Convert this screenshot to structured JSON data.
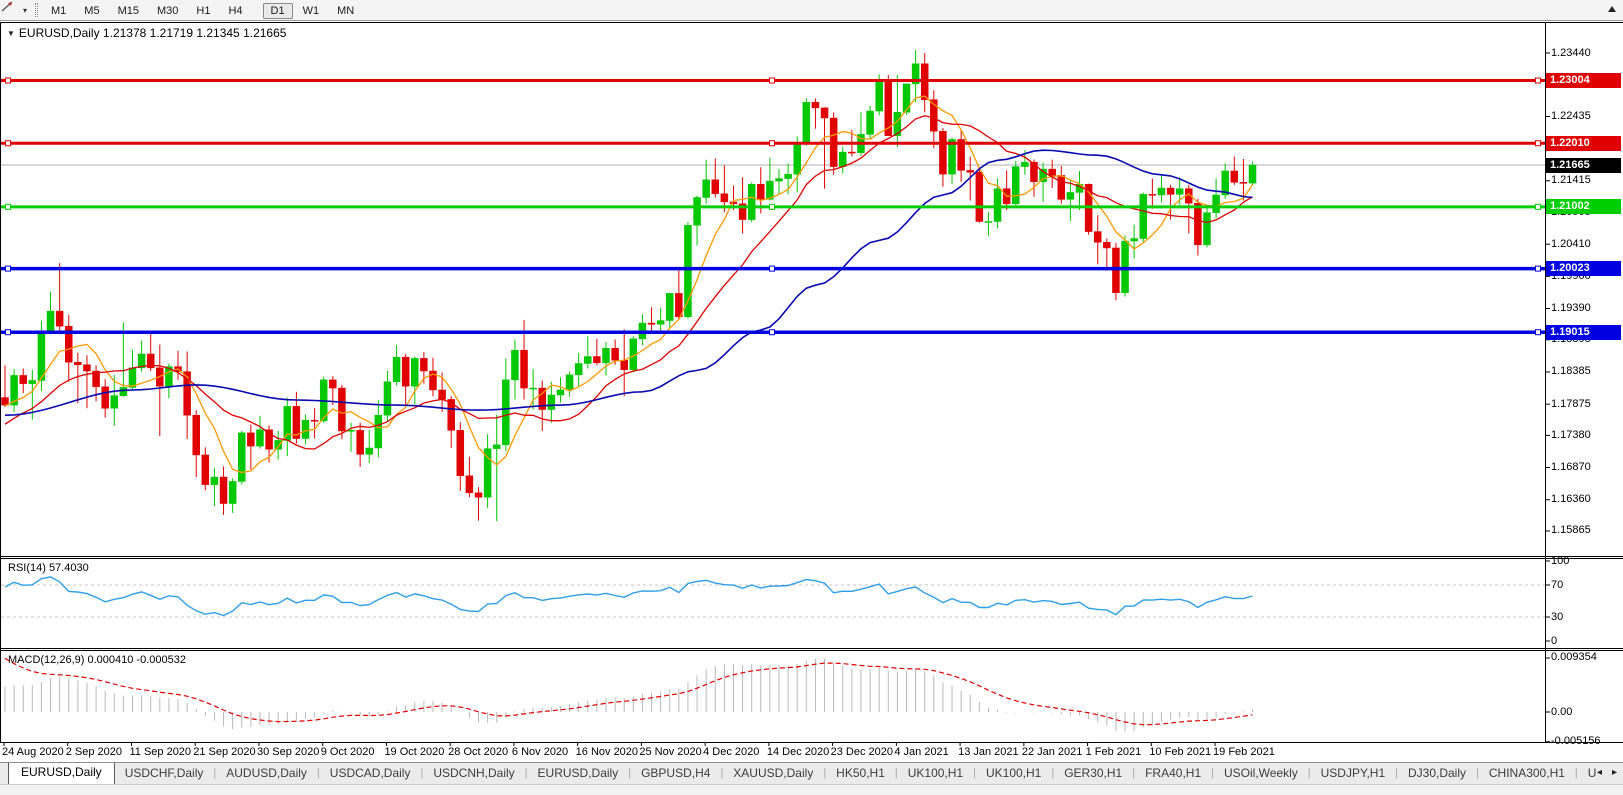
{
  "toolbar": {
    "cursor_tool_icon": "trendline-cursor-icon",
    "dropdown_icon": "chevron-down-icon",
    "timeframes": [
      "M1",
      "M5",
      "M15",
      "M30",
      "H1",
      "H4",
      "D1",
      "W1",
      "MN"
    ],
    "active_timeframe": "D1"
  },
  "chart_window": {
    "collapse_icon": "▼",
    "title": "EURUSD,Daily  1.21378 1.21719 1.21345 1.21665"
  },
  "chart_data": {
    "type": "candlestick",
    "symbol": "EURUSD",
    "timeframe": "Daily",
    "last_bar": {
      "open": 1.21378,
      "high": 1.21719,
      "low": 1.21345,
      "close": 1.21665
    },
    "price_axis_ticks": [
      "1.23440",
      "1.22930",
      "1.22435",
      "1.21925",
      "1.21415",
      "1.20905",
      "1.20410",
      "1.19900",
      "1.19390",
      "1.18895",
      "1.18385",
      "1.17875",
      "1.17380",
      "1.16870",
      "1.16360",
      "1.15865"
    ],
    "date_labels": [
      "24 Aug 2020",
      "2 Sep 2020",
      "11 Sep 2020",
      "21 Sep 2020",
      "30 Sep 2020",
      "9 Oct 2020",
      "19 Oct 2020",
      "28 Oct 2020",
      "6 Nov 2020",
      "16 Nov 2020",
      "25 Nov 2020",
      "4 Dec 2020",
      "14 Dec 2020",
      "23 Dec 2020",
      "4 Jan 2021",
      "13 Jan 2021",
      "22 Jan 2021",
      "1 Feb 2021",
      "10 Feb 2021",
      "19 Feb 2021"
    ],
    "colors": {
      "candle_up": "#00c800",
      "candle_down": "#e00000",
      "ma_fast": "#ff9900",
      "ma_medium": "#dd0000",
      "ma_slow": "#0909b0",
      "current_price_line": "#b0b0b0",
      "current_price_tag_bg": "#000000",
      "frame": "#000000"
    },
    "hlines": [
      {
        "price": 1.23004,
        "label": "1.23004",
        "color": "#e00000",
        "width": 3
      },
      {
        "price": 1.2201,
        "label": "1.22010",
        "color": "#e00000",
        "width": 3
      },
      {
        "price": 1.21002,
        "label": "1.21002",
        "color": "#00ce00",
        "width": 3
      },
      {
        "price": 1.20023,
        "label": "1.20023",
        "color": "#0000e0",
        "width": 3.5
      },
      {
        "price": 1.19015,
        "label": "1.19015",
        "color": "#0000e0",
        "width": 3.5
      }
    ],
    "current_price": {
      "value": 1.21665,
      "label": "1.21665"
    },
    "moving_averages": {
      "fast_period": 6,
      "medium_period": 14,
      "slow_anchors": [
        [
          0,
          1.177
        ],
        [
          14,
          1.181
        ],
        [
          21,
          1.1818
        ],
        [
          32,
          1.1794
        ],
        [
          43,
          1.1786
        ],
        [
          52,
          1.1778
        ],
        [
          61,
          1.1786
        ],
        [
          70,
          1.1807
        ],
        [
          76,
          1.1841
        ],
        [
          83,
          1.1905
        ],
        [
          89,
          1.1976
        ],
        [
          96,
          1.2047
        ],
        [
          103,
          1.2119
        ],
        [
          109,
          1.2174
        ],
        [
          114,
          1.219
        ],
        [
          120,
          1.2182
        ],
        [
          127,
          1.2151
        ],
        [
          133,
          1.2125
        ],
        [
          137,
          1.2115
        ]
      ]
    },
    "rsi": {
      "label": "RSI(14) 57.4030",
      "period": 14,
      "current": 57.403,
      "axis_ticks": [
        "100",
        "70",
        "30",
        "0"
      ],
      "level_lines": [
        70,
        30
      ],
      "color": "#2e9fe6"
    },
    "macd": {
      "label": "MACD(12,26,9) 0.000410 -0.000532",
      "current_macd": 0.00041,
      "current_signal": -0.000532,
      "axis_ticks": [
        "0.009354",
        "0.00",
        "-0.005156"
      ],
      "hist_color": "#b8b8b8",
      "signal_color": "#e00000"
    },
    "candles": [
      [
        1.1798,
        1.1849,
        1.1783,
        1.1786
      ],
      [
        1.1786,
        1.1843,
        1.1775,
        1.1833
      ],
      [
        1.1833,
        1.1844,
        1.1805,
        1.182
      ],
      [
        1.182,
        1.1842,
        1.1763,
        1.1825
      ],
      [
        1.1825,
        1.192,
        1.1808,
        1.1903
      ],
      [
        1.1903,
        1.1966,
        1.1898,
        1.1935
      ],
      [
        1.1935,
        1.2011,
        1.1902,
        1.1911
      ],
      [
        1.1911,
        1.1929,
        1.1823,
        1.1854
      ],
      [
        1.1854,
        1.1869,
        1.1789,
        1.185
      ],
      [
        1.185,
        1.1865,
        1.1781,
        1.184
      ],
      [
        1.184,
        1.1849,
        1.1792,
        1.1815
      ],
      [
        1.1815,
        1.1827,
        1.1766,
        1.1781
      ],
      [
        1.1781,
        1.1834,
        1.1753,
        1.1801
      ],
      [
        1.1801,
        1.1917,
        1.1799,
        1.1814
      ],
      [
        1.1814,
        1.1874,
        1.1809,
        1.1845
      ],
      [
        1.1845,
        1.1888,
        1.1839,
        1.1867
      ],
      [
        1.1867,
        1.19,
        1.184,
        1.1845
      ],
      [
        1.1845,
        1.1882,
        1.1737,
        1.1816
      ],
      [
        1.1816,
        1.1852,
        1.1797,
        1.1847
      ],
      [
        1.1847,
        1.1872,
        1.1826,
        1.1839
      ],
      [
        1.1839,
        1.1871,
        1.1732,
        1.177
      ],
      [
        1.177,
        1.1778,
        1.1672,
        1.1707
      ],
      [
        1.1707,
        1.1719,
        1.1651,
        1.166
      ],
      [
        1.166,
        1.1686,
        1.1626,
        1.1672
      ],
      [
        1.1672,
        1.1689,
        1.1612,
        1.163
      ],
      [
        1.163,
        1.167,
        1.1615,
        1.1665
      ],
      [
        1.1665,
        1.1745,
        1.166,
        1.1742
      ],
      [
        1.1742,
        1.1755,
        1.1684,
        1.1721
      ],
      [
        1.1721,
        1.1769,
        1.1717,
        1.1747
      ],
      [
        1.1747,
        1.1754,
        1.1695,
        1.1716
      ],
      [
        1.1716,
        1.1745,
        1.17,
        1.173
      ],
      [
        1.173,
        1.1798,
        1.1705,
        1.1784
      ],
      [
        1.1784,
        1.1807,
        1.1725,
        1.1733
      ],
      [
        1.1733,
        1.1771,
        1.1724,
        1.1762
      ],
      [
        1.1762,
        1.1781,
        1.1733,
        1.1761
      ],
      [
        1.1761,
        1.1831,
        1.1758,
        1.1826
      ],
      [
        1.1826,
        1.1832,
        1.1786,
        1.1813
      ],
      [
        1.1813,
        1.1818,
        1.1732,
        1.1745
      ],
      [
        1.1745,
        1.1758,
        1.1712,
        1.1746
      ],
      [
        1.1746,
        1.1758,
        1.1688,
        1.1708
      ],
      [
        1.1708,
        1.1747,
        1.1694,
        1.1718
      ],
      [
        1.1718,
        1.1794,
        1.1703,
        1.177
      ],
      [
        1.177,
        1.184,
        1.1759,
        1.1823
      ],
      [
        1.1823,
        1.1881,
        1.1817,
        1.1862
      ],
      [
        1.1862,
        1.1867,
        1.1786,
        1.1816
      ],
      [
        1.1816,
        1.1863,
        1.1787,
        1.186
      ],
      [
        1.186,
        1.187,
        1.182,
        1.184
      ],
      [
        1.184,
        1.1861,
        1.18,
        1.181
      ],
      [
        1.181,
        1.1838,
        1.1775,
        1.1795
      ],
      [
        1.1795,
        1.18,
        1.1718,
        1.1746
      ],
      [
        1.1746,
        1.1759,
        1.165,
        1.1674
      ],
      [
        1.1674,
        1.1704,
        1.164,
        1.1647
      ],
      [
        1.1647,
        1.1656,
        1.1603,
        1.164
      ],
      [
        1.164,
        1.174,
        1.1623,
        1.1717
      ],
      [
        1.1717,
        1.1771,
        1.1602,
        1.1723
      ],
      [
        1.1723,
        1.186,
        1.1713,
        1.1826
      ],
      [
        1.1826,
        1.189,
        1.1795,
        1.1873
      ],
      [
        1.1873,
        1.1921,
        1.1795,
        1.1813
      ],
      [
        1.1813,
        1.1843,
        1.1779,
        1.1813
      ],
      [
        1.1813,
        1.1825,
        1.1745,
        1.1779
      ],
      [
        1.1779,
        1.1823,
        1.1758,
        1.1802
      ],
      [
        1.1802,
        1.183,
        1.179,
        1.181
      ],
      [
        1.181,
        1.1839,
        1.1799,
        1.1834
      ],
      [
        1.1834,
        1.1869,
        1.1814,
        1.1852
      ],
      [
        1.1852,
        1.1895,
        1.1844,
        1.1863
      ],
      [
        1.1863,
        1.1891,
        1.1849,
        1.1853
      ],
      [
        1.1853,
        1.1886,
        1.1833,
        1.1876
      ],
      [
        1.1876,
        1.189,
        1.185,
        1.1857
      ],
      [
        1.1857,
        1.1906,
        1.18,
        1.1842
      ],
      [
        1.1842,
        1.1895,
        1.1838,
        1.1891
      ],
      [
        1.1891,
        1.193,
        1.1881,
        1.1916
      ],
      [
        1.1916,
        1.1941,
        1.1903,
        1.1914
      ],
      [
        1.1914,
        1.194,
        1.19,
        1.192
      ],
      [
        1.192,
        1.1964,
        1.1908,
        1.1963
      ],
      [
        1.1963,
        1.2003,
        1.1923,
        1.1926
      ],
      [
        1.1926,
        1.2076,
        1.1923,
        1.2071
      ],
      [
        1.2071,
        1.2118,
        1.2039,
        1.2115
      ],
      [
        1.2115,
        1.2175,
        1.2105,
        1.2143
      ],
      [
        1.2143,
        1.2177,
        1.2115,
        1.2121
      ],
      [
        1.2121,
        1.2166,
        1.2092,
        1.2108
      ],
      [
        1.2108,
        1.2134,
        1.2095,
        1.2105
      ],
      [
        1.2105,
        1.2147,
        1.2058,
        1.208
      ],
      [
        1.208,
        1.2139,
        1.2076,
        1.2136
      ],
      [
        1.2136,
        1.2163,
        1.209,
        1.2112
      ],
      [
        1.2112,
        1.2178,
        1.211,
        1.2141
      ],
      [
        1.2141,
        1.216,
        1.212,
        1.2145
      ],
      [
        1.2145,
        1.2169,
        1.212,
        1.2152
      ],
      [
        1.2152,
        1.2212,
        1.2123,
        1.2202
      ],
      [
        1.2202,
        1.2272,
        1.2197,
        1.2266
      ],
      [
        1.2266,
        1.2272,
        1.2224,
        1.2257
      ],
      [
        1.2257,
        1.2258,
        1.2129,
        1.2241
      ],
      [
        1.2241,
        1.225,
        1.2151,
        1.2164
      ],
      [
        1.2164,
        1.2195,
        1.2153,
        1.2187
      ],
      [
        1.2187,
        1.2222,
        1.218,
        1.2186
      ],
      [
        1.2186,
        1.225,
        1.2181,
        1.2215
      ],
      [
        1.2215,
        1.226,
        1.2208,
        1.2252
      ],
      [
        1.2252,
        1.231,
        1.2245,
        1.2299
      ],
      [
        1.2299,
        1.2309,
        1.2214,
        1.2213
      ],
      [
        1.2213,
        1.2309,
        1.2195,
        1.225
      ],
      [
        1.225,
        1.2295,
        1.2246,
        1.2295
      ],
      [
        1.2295,
        1.2349,
        1.2266,
        1.2327
      ],
      [
        1.2327,
        1.2344,
        1.225,
        1.227
      ],
      [
        1.227,
        1.2285,
        1.2193,
        1.222
      ],
      [
        1.222,
        1.2225,
        1.2132,
        1.2152
      ],
      [
        1.2152,
        1.221,
        1.2137,
        1.2207
      ],
      [
        1.2207,
        1.2223,
        1.214,
        1.2158
      ],
      [
        1.2158,
        1.218,
        1.211,
        1.2155
      ],
      [
        1.2155,
        1.2163,
        1.2075,
        1.2077
      ],
      [
        1.2077,
        1.2092,
        1.2054,
        1.2077
      ],
      [
        1.2077,
        1.2145,
        1.2066,
        1.2129
      ],
      [
        1.2129,
        1.2158,
        1.2095,
        1.2105
      ],
      [
        1.2105,
        1.2173,
        1.2103,
        1.2164
      ],
      [
        1.2164,
        1.219,
        1.2151,
        1.2171
      ],
      [
        1.2171,
        1.2175,
        1.2116,
        1.214
      ],
      [
        1.214,
        1.217,
        1.2108,
        1.216
      ],
      [
        1.216,
        1.2175,
        1.213,
        1.215
      ],
      [
        1.215,
        1.2165,
        1.2105,
        1.2112
      ],
      [
        1.2112,
        1.2142,
        1.2078,
        1.2123
      ],
      [
        1.2123,
        1.2157,
        1.2095,
        1.2136
      ],
      [
        1.2136,
        1.2137,
        1.2056,
        1.2061
      ],
      [
        1.2061,
        1.2087,
        1.2009,
        1.2044
      ],
      [
        1.2044,
        1.205,
        1.1999,
        1.2035
      ],
      [
        1.2035,
        1.2043,
        1.1952,
        1.1964
      ],
      [
        1.1964,
        1.2055,
        1.1958,
        1.2046
      ],
      [
        1.2046,
        1.2072,
        1.2018,
        1.205
      ],
      [
        1.205,
        1.2123,
        1.2042,
        1.212
      ],
      [
        1.212,
        1.2145,
        1.2097,
        1.2119
      ],
      [
        1.2119,
        1.2152,
        1.2107,
        1.213
      ],
      [
        1.213,
        1.2135,
        1.208,
        1.212
      ],
      [
        1.212,
        1.2147,
        1.2104,
        1.2129
      ],
      [
        1.2129,
        1.2135,
        1.2058,
        1.2106
      ],
      [
        1.2106,
        1.2113,
        1.2023,
        1.204
      ],
      [
        1.204,
        1.2101,
        1.2036,
        1.2091
      ],
      [
        1.2091,
        1.2145,
        1.2082,
        1.2119
      ],
      [
        1.2119,
        1.2169,
        1.2113,
        1.2157
      ],
      [
        1.2157,
        1.218,
        1.2135,
        1.2139
      ],
      [
        1.2139,
        1.2176,
        1.211,
        1.2138
      ],
      [
        1.21378,
        1.21719,
        1.21345,
        1.21665
      ]
    ]
  },
  "tabs": {
    "items": [
      "EURUSD,Daily",
      "USDCHF,Daily",
      "AUDUSD,Daily",
      "USDCAD,Daily",
      "USDCNH,Daily",
      "EURUSD,Daily",
      "GBPUSD,H4",
      "XAUUSD,Daily",
      "HK50,H1",
      "UK100,H1",
      "UK100,H1",
      "GER30,H1",
      "FRA40,H1",
      "USOil,Weekly",
      "USDJPY,H1",
      "DJ30,Daily",
      "CHINA300,H1",
      "U"
    ],
    "active_index": 0,
    "scroll_left_icon": "◂",
    "scroll_right_icon": "▸"
  }
}
